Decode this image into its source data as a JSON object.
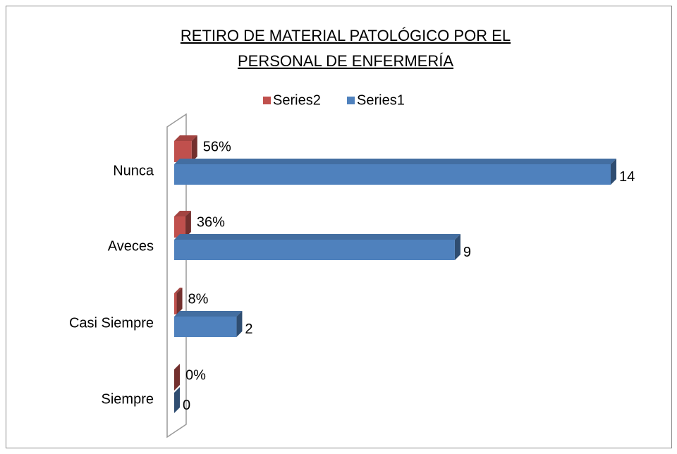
{
  "chart_data": {
    "type": "bar",
    "orientation": "horizontal",
    "title": [
      "RETIRO DE MATERIAL PATOLÓGICO POR EL",
      "PERSONAL DE ENFERMERÍA"
    ],
    "categories": [
      "Nunca",
      "Aveces",
      "Casi Siempre",
      "Siempre"
    ],
    "series": [
      {
        "name": "Series2",
        "color": "#c0504d",
        "values": [
          0.56,
          0.36,
          0.08,
          0
        ],
        "value_labels": [
          "56%",
          "36%",
          "8%",
          "0%"
        ]
      },
      {
        "name": "Series1",
        "color": "#4f81bd",
        "values": [
          14,
          9,
          2,
          0
        ]
      }
    ],
    "legend": "top"
  }
}
